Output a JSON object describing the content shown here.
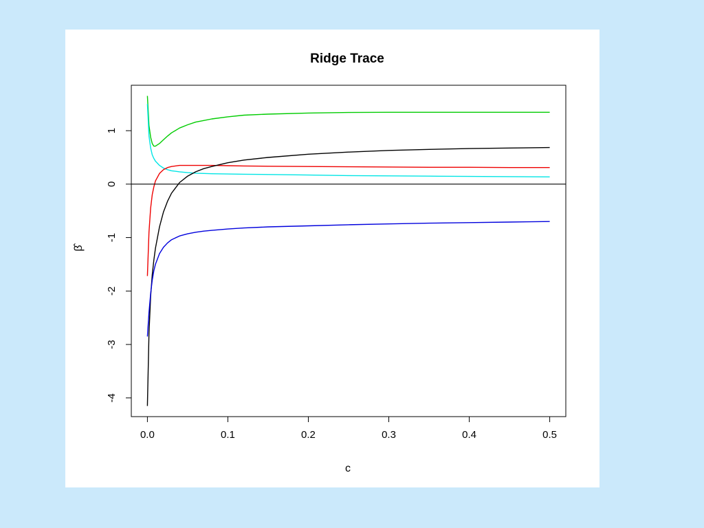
{
  "chart_data": {
    "type": "line",
    "title": "Ridge Trace",
    "xlabel": "c",
    "ylabel": "β̂",
    "xlim": [
      -0.02,
      0.52
    ],
    "ylim": [
      -4.35,
      1.85
    ],
    "xticks": [
      0.0,
      0.1,
      0.2,
      0.3,
      0.4,
      0.5
    ],
    "xtick_labels": [
      "0.0",
      "0.1",
      "0.2",
      "0.3",
      "0.4",
      "0.5"
    ],
    "yticks": [
      -4,
      -3,
      -2,
      -1,
      0,
      1
    ],
    "ytick_labels": [
      "-4",
      "-3",
      "-2",
      "-1",
      "0",
      "1"
    ],
    "hline": 0,
    "grid": false,
    "legend": "none",
    "x": [
      0,
      0.002,
      0.004,
      0.006,
      0.008,
      0.01,
      0.015,
      0.02,
      0.025,
      0.03,
      0.04,
      0.05,
      0.06,
      0.07,
      0.08,
      0.1,
      0.12,
      0.15,
      0.2,
      0.25,
      0.3,
      0.35,
      0.4,
      0.45,
      0.5
    ],
    "series": [
      {
        "color": "#00cc00",
        "values": [
          1.65,
          1.1,
          0.88,
          0.76,
          0.71,
          0.71,
          0.76,
          0.83,
          0.9,
          0.96,
          1.05,
          1.11,
          1.16,
          1.19,
          1.22,
          1.26,
          1.29,
          1.31,
          1.33,
          1.34,
          1.345,
          1.345,
          1.345,
          1.345,
          1.345
        ]
      },
      {
        "color": "#00e5e5",
        "values": [
          1.5,
          0.9,
          0.68,
          0.55,
          0.48,
          0.43,
          0.35,
          0.3,
          0.27,
          0.25,
          0.23,
          0.215,
          0.205,
          0.2,
          0.195,
          0.19,
          0.185,
          0.18,
          0.17,
          0.16,
          0.155,
          0.15,
          0.145,
          0.14,
          0.135
        ]
      },
      {
        "color": "#ee0000",
        "values": [
          -1.72,
          -0.9,
          -0.45,
          -0.2,
          -0.05,
          0.06,
          0.2,
          0.27,
          0.31,
          0.33,
          0.35,
          0.35,
          0.35,
          0.35,
          0.35,
          0.345,
          0.34,
          0.335,
          0.33,
          0.325,
          0.32,
          0.315,
          0.315,
          0.31,
          0.31
        ]
      },
      {
        "color": "#000000",
        "values": [
          -4.15,
          -2.8,
          -2.1,
          -1.7,
          -1.42,
          -1.2,
          -0.8,
          -0.52,
          -0.32,
          -0.17,
          0.03,
          0.15,
          0.23,
          0.29,
          0.33,
          0.4,
          0.45,
          0.5,
          0.56,
          0.6,
          0.63,
          0.65,
          0.665,
          0.675,
          0.685
        ]
      },
      {
        "color": "#0000dd",
        "values": [
          -2.85,
          -2.4,
          -2.05,
          -1.8,
          -1.62,
          -1.5,
          -1.3,
          -1.18,
          -1.1,
          -1.04,
          -0.97,
          -0.93,
          -0.9,
          -0.88,
          -0.865,
          -0.84,
          -0.82,
          -0.8,
          -0.78,
          -0.76,
          -0.745,
          -0.73,
          -0.72,
          -0.71,
          -0.7
        ]
      }
    ]
  }
}
